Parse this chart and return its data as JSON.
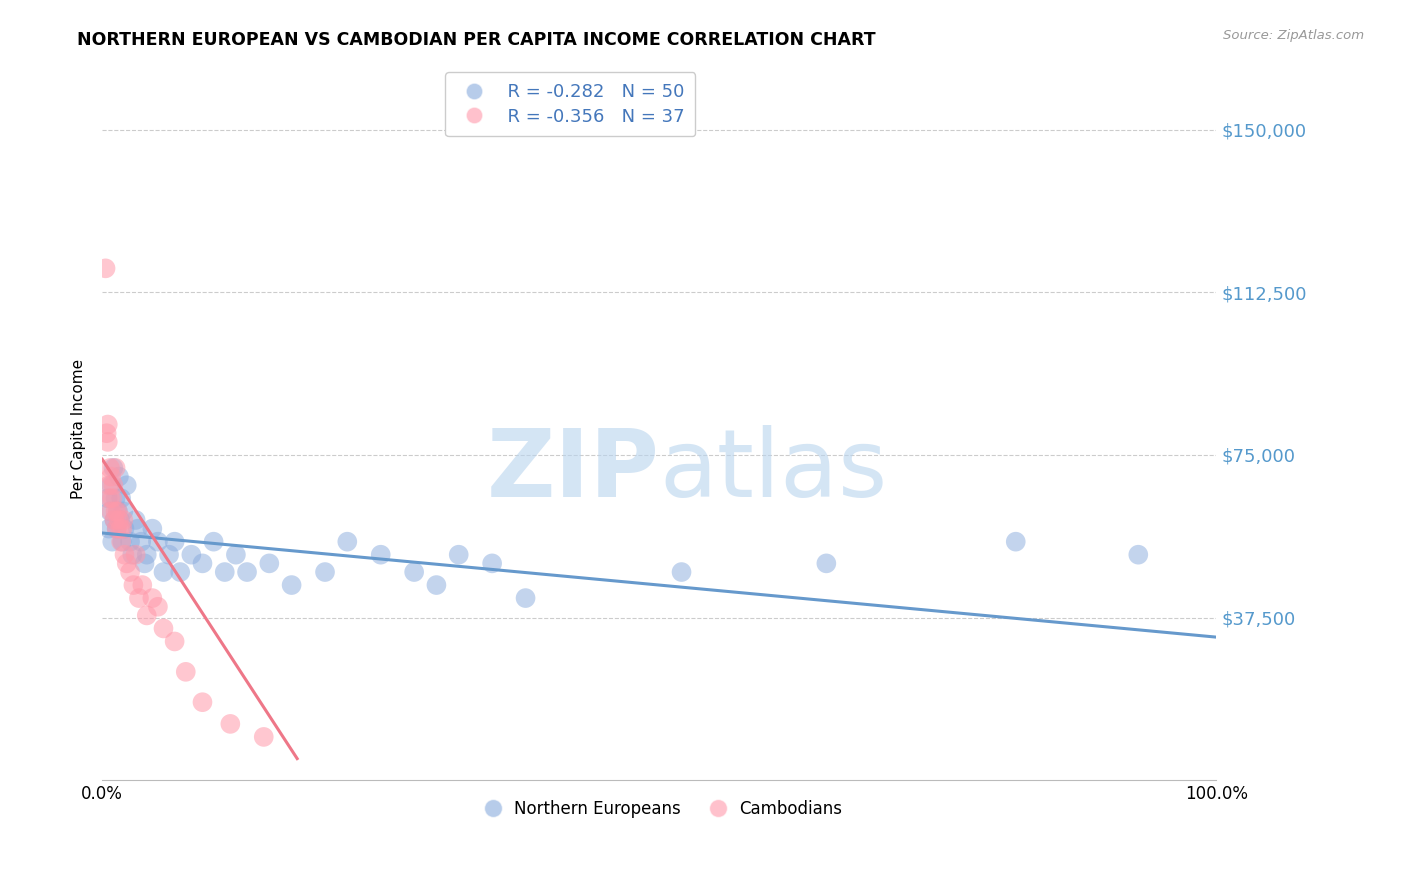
{
  "title": "NORTHERN EUROPEAN VS CAMBODIAN PER CAPITA INCOME CORRELATION CHART",
  "source": "Source: ZipAtlas.com",
  "ylabel": "Per Capita Income",
  "yticks": [
    37500,
    75000,
    112500,
    150000
  ],
  "ytick_labels": [
    "$37,500",
    "$75,000",
    "$112,500",
    "$150,000"
  ],
  "xlim": [
    0,
    1.0
  ],
  "ylim": [
    0,
    162000
  ],
  "xtick_labels": [
    "0.0%",
    "100.0%"
  ],
  "blue_color": "#6699cc",
  "pink_color": "#ee7788",
  "blue_scatter_color": "#88aadd",
  "pink_scatter_color": "#ff99aa",
  "blue_line_x": [
    0.0,
    1.0
  ],
  "blue_line_y": [
    57000,
    33000
  ],
  "pink_line_x": [
    0.0,
    0.175
  ],
  "pink_line_y": [
    74000,
    5000
  ],
  "northern_european_x": [
    0.005,
    0.006,
    0.007,
    0.008,
    0.009,
    0.01,
    0.011,
    0.012,
    0.013,
    0.014,
    0.015,
    0.016,
    0.017,
    0.018,
    0.019,
    0.02,
    0.022,
    0.025,
    0.027,
    0.03,
    0.032,
    0.035,
    0.038,
    0.04,
    0.045,
    0.05,
    0.055,
    0.06,
    0.065,
    0.07,
    0.08,
    0.09,
    0.1,
    0.11,
    0.12,
    0.13,
    0.15,
    0.17,
    0.2,
    0.22,
    0.25,
    0.28,
    0.3,
    0.32,
    0.35,
    0.38,
    0.52,
    0.65,
    0.82,
    0.93
  ],
  "northern_european_y": [
    65000,
    58000,
    62000,
    68000,
    55000,
    72000,
    60000,
    65000,
    58000,
    62000,
    70000,
    60000,
    65000,
    55000,
    62000,
    58000,
    68000,
    55000,
    52000,
    60000,
    58000,
    55000,
    50000,
    52000,
    58000,
    55000,
    48000,
    52000,
    55000,
    48000,
    52000,
    50000,
    55000,
    48000,
    52000,
    48000,
    50000,
    45000,
    48000,
    55000,
    52000,
    48000,
    45000,
    52000,
    50000,
    42000,
    48000,
    50000,
    55000,
    52000
  ],
  "cambodian_x": [
    0.003,
    0.004,
    0.005,
    0.005,
    0.006,
    0.007,
    0.007,
    0.008,
    0.008,
    0.009,
    0.01,
    0.011,
    0.012,
    0.012,
    0.013,
    0.014,
    0.015,
    0.016,
    0.017,
    0.018,
    0.019,
    0.02,
    0.022,
    0.025,
    0.028,
    0.03,
    0.033,
    0.036,
    0.04,
    0.045,
    0.05,
    0.055,
    0.065,
    0.075,
    0.09,
    0.115,
    0.145
  ],
  "cambodian_y": [
    118000,
    80000,
    82000,
    78000,
    68000,
    72000,
    65000,
    70000,
    62000,
    65000,
    68000,
    60000,
    62000,
    72000,
    58000,
    62000,
    60000,
    58000,
    55000,
    58000,
    60000,
    52000,
    50000,
    48000,
    45000,
    52000,
    42000,
    45000,
    38000,
    42000,
    40000,
    35000,
    32000,
    25000,
    18000,
    13000,
    10000
  ]
}
